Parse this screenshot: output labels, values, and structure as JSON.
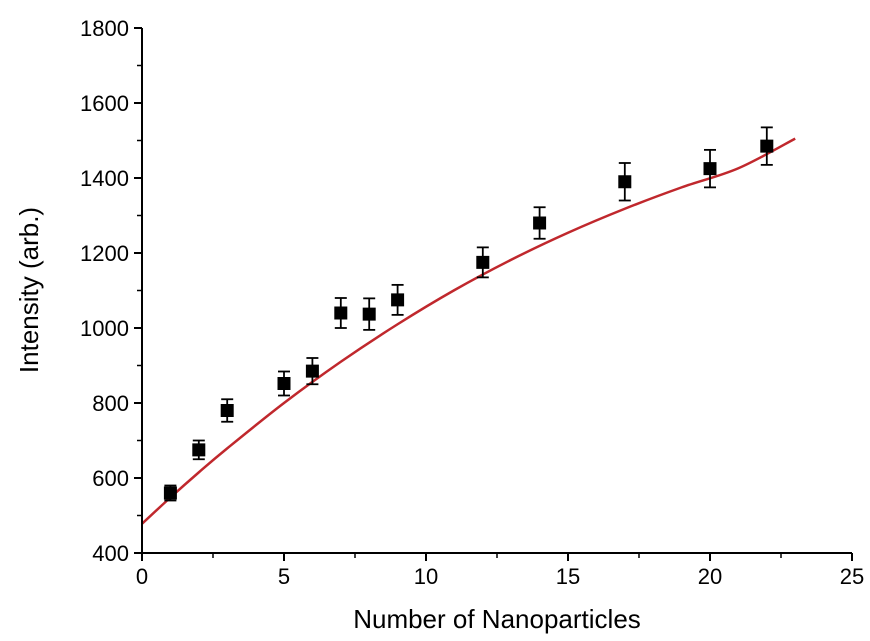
{
  "colors": {
    "markers": "#000000",
    "fit_line": "#c0282d",
    "axes": "#000000",
    "background": "#ffffff"
  },
  "chart_data": {
    "type": "scatter",
    "title": "",
    "xlabel": "Number of Nanoparticles",
    "ylabel": "Intensity (arb.)",
    "xlim": [
      0,
      25
    ],
    "ylim": [
      400,
      1800
    ],
    "x_ticks": [
      0,
      5,
      10,
      15,
      20,
      25
    ],
    "x_tick_labels": [
      "0",
      "5",
      "10",
      "15",
      "20",
      "25"
    ],
    "y_ticks": [
      400,
      600,
      800,
      1000,
      1200,
      1400,
      1600,
      1800
    ],
    "y_tick_labels": [
      "400",
      "600",
      "800",
      "1000",
      "1200",
      "1400",
      "1600",
      "1800"
    ],
    "grid": false,
    "legend": "none",
    "series": [
      {
        "kind": "scatter-with-error-bars",
        "marker": "square",
        "x": [
          1,
          2,
          3,
          5,
          6,
          7,
          8,
          9,
          12,
          14,
          17,
          20,
          22
        ],
        "y": [
          560,
          675,
          780,
          852,
          885,
          1040,
          1037,
          1075,
          1175,
          1280,
          1390,
          1425,
          1485
        ],
        "error": [
          20,
          25,
          30,
          32,
          35,
          40,
          42,
          40,
          40,
          42,
          50,
          50,
          50
        ]
      },
      {
        "kind": "fit-line",
        "x": [
          0,
          1,
          2,
          3,
          5,
          7,
          9,
          11,
          13,
          15,
          17,
          19,
          21,
          23
        ],
        "y": [
          478,
          548,
          615,
          679,
          800,
          910,
          1010,
          1101,
          1182,
          1254,
          1318,
          1375,
          1426,
          1505
        ]
      }
    ]
  }
}
